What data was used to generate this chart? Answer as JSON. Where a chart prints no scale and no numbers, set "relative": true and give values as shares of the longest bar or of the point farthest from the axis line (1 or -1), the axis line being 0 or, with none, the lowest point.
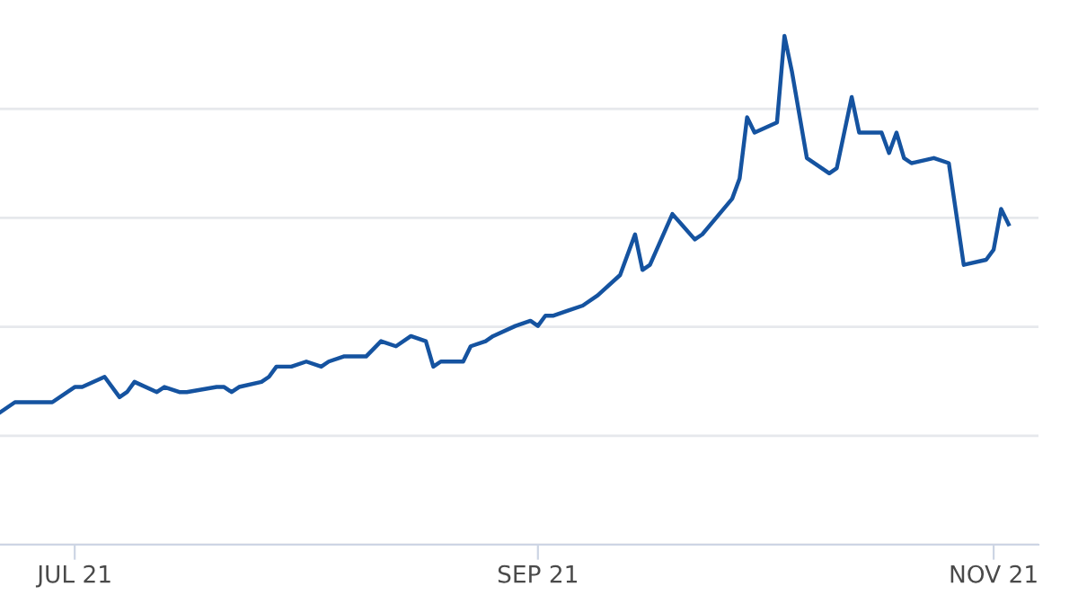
{
  "chart_data": {
    "type": "line",
    "relative": true,
    "grid": "y",
    "xlim": [
      "2021-06-21",
      "2021-11-07"
    ],
    "xticks": [
      {
        "value": "2021-07-01",
        "label": "JUL 21"
      },
      {
        "value": "2021-09-01",
        "label": "SEP 21"
      },
      {
        "value": "2021-11-01",
        "label": "NOV 21"
      }
    ],
    "x": [
      "2021-06-21",
      "2021-06-23",
      "2021-06-25",
      "2021-06-28",
      "2021-07-01",
      "2021-07-02",
      "2021-07-05",
      "2021-07-07",
      "2021-07-08",
      "2021-07-09",
      "2021-07-12",
      "2021-07-13",
      "2021-07-15",
      "2021-07-16",
      "2021-07-20",
      "2021-07-21",
      "2021-07-22",
      "2021-07-23",
      "2021-07-26",
      "2021-07-27",
      "2021-07-28",
      "2021-07-30",
      "2021-08-01",
      "2021-08-03",
      "2021-08-04",
      "2021-08-06",
      "2021-08-09",
      "2021-08-11",
      "2021-08-13",
      "2021-08-15",
      "2021-08-17",
      "2021-08-18",
      "2021-08-19",
      "2021-08-22",
      "2021-08-23",
      "2021-08-25",
      "2021-08-26",
      "2021-08-29",
      "2021-08-31",
      "2021-09-01",
      "2021-09-02",
      "2021-09-03",
      "2021-09-05",
      "2021-09-07",
      "2021-09-09",
      "2021-09-12",
      "2021-09-14",
      "2021-09-15",
      "2021-09-16",
      "2021-09-19",
      "2021-09-22",
      "2021-09-23",
      "2021-09-27",
      "2021-09-28",
      "2021-09-29",
      "2021-09-30",
      "2021-10-03",
      "2021-10-04",
      "2021-10-05",
      "2021-10-07",
      "2021-10-10",
      "2021-10-11",
      "2021-10-13",
      "2021-10-14",
      "2021-10-17",
      "2021-10-18",
      "2021-10-19",
      "2021-10-20",
      "2021-10-21",
      "2021-10-24",
      "2021-10-26",
      "2021-10-28",
      "2021-10-31",
      "2021-11-01",
      "2021-11-02",
      "2021-11-03"
    ],
    "series": [
      {
        "color": "#1553a0",
        "values": [
          0.26,
          0.28,
          0.28,
          0.28,
          0.31,
          0.31,
          0.33,
          0.29,
          0.3,
          0.32,
          0.3,
          0.31,
          0.3,
          0.3,
          0.31,
          0.31,
          0.3,
          0.31,
          0.32,
          0.33,
          0.35,
          0.35,
          0.36,
          0.35,
          0.36,
          0.37,
          0.37,
          0.4,
          0.39,
          0.41,
          0.4,
          0.35,
          0.36,
          0.36,
          0.39,
          0.4,
          0.41,
          0.43,
          0.44,
          0.43,
          0.45,
          0.45,
          0.46,
          0.47,
          0.49,
          0.53,
          0.61,
          0.54,
          0.55,
          0.65,
          0.6,
          0.61,
          0.68,
          0.72,
          0.84,
          0.81,
          0.83,
          1,
          0.93,
          0.76,
          0.73,
          0.74,
          0.88,
          0.81,
          0.81,
          0.77,
          0.81,
          0.76,
          0.75,
          0.76,
          0.75,
          0.55,
          0.56,
          0.58,
          0.66,
          0.63
        ]
      }
    ],
    "line_style": "solid",
    "marker": "none"
  }
}
